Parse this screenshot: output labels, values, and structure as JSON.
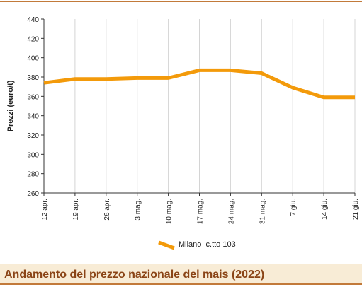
{
  "chart_data": {
    "type": "line",
    "title": "Andamento del prezzo nazionale del mais (2022)",
    "y_label": "Prezzi (euro/t)",
    "categories": [
      "12 apr.",
      "19 apr.",
      "26 apr.",
      "3 mag.",
      "10 mag.",
      "17 mag.",
      "24 mag.",
      "31 mag.",
      "7 giu.",
      "14 giu.",
      "21 giu."
    ],
    "series": [
      {
        "name": "Milano  c.tto 103",
        "color": "#f39a0a",
        "values": [
          374,
          378,
          378,
          379,
          379,
          387,
          387,
          384,
          369,
          359,
          359
        ]
      }
    ],
    "ylim": [
      260,
      440
    ],
    "yticks": [
      260,
      280,
      300,
      320,
      340,
      360,
      380,
      400,
      420,
      440
    ],
    "xgrid": true
  }
}
